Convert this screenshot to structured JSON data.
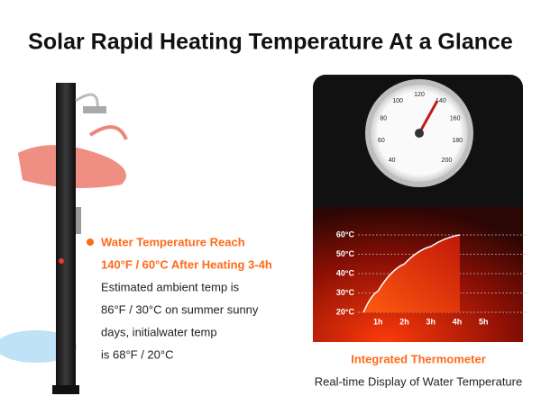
{
  "header": {
    "title": "Solar Rapid Heating Temperature At a Glance"
  },
  "callout": {
    "heading": "Water Temperature Reach",
    "subheading": "140°F / 60°C After Heating 3-4h",
    "body": [
      "Estimated ambient temp is",
      "86°F / 30°C on summer sunny",
      "days, initialwater temp",
      "is 68°F / 20°C"
    ]
  },
  "gauge": {
    "labels": [
      "40",
      "60",
      "80",
      "100",
      "120",
      "140",
      "160",
      "180",
      "200"
    ]
  },
  "heating_chart": {
    "type": "area",
    "x": [
      0.45,
      1,
      2,
      3,
      4.1
    ],
    "values": [
      20,
      31,
      45,
      54,
      60
    ],
    "xlim": [
      0,
      6.7
    ],
    "ylim": [
      20,
      60
    ],
    "xticks": [
      {
        "value": 1,
        "label": "1h"
      },
      {
        "value": 2,
        "label": "2h"
      },
      {
        "value": 3,
        "label": "3h"
      },
      {
        "value": 4,
        "label": "4h"
      },
      {
        "value": 5,
        "label": "5h"
      }
    ],
    "yticks": [
      {
        "value": 20,
        "label": "20°C"
      },
      {
        "value": 30,
        "label": "30°C"
      },
      {
        "value": 40,
        "label": "40°C"
      },
      {
        "value": 50,
        "label": "50°C"
      },
      {
        "value": 60,
        "label": "60°C"
      }
    ],
    "grid": true,
    "color": "#ff4a1a"
  },
  "caption": {
    "title": "Integrated Thermometer",
    "subtitle": "Real-time Display of Water Temperature"
  }
}
